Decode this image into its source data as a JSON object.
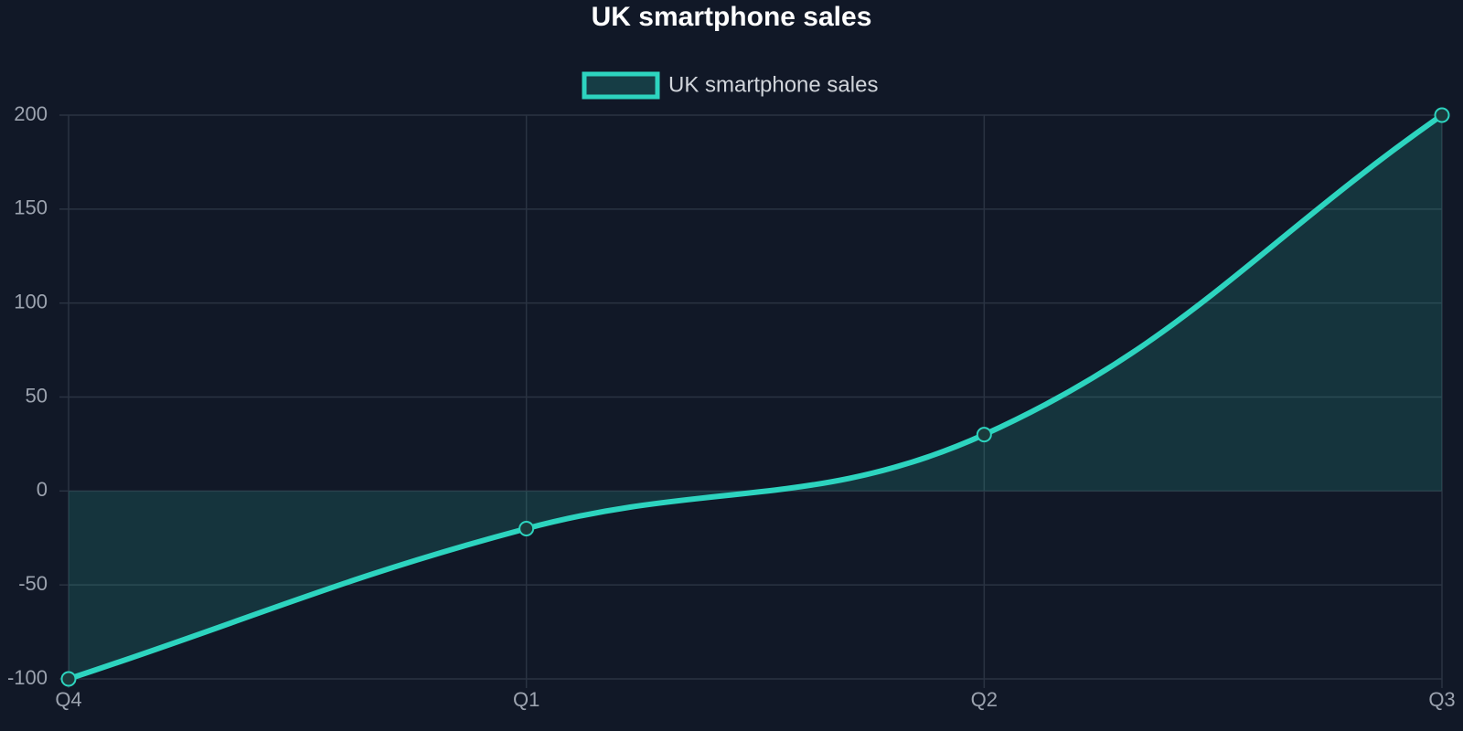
{
  "chart_data": {
    "type": "line",
    "title": "UK smartphone sales",
    "categories": [
      "Q4",
      "Q1",
      "Q2",
      "Q3"
    ],
    "series": [
      {
        "name": "UK smartphone sales",
        "color": "#2dd4bf",
        "values": [
          -100,
          -20,
          30,
          200
        ]
      }
    ],
    "ylim": [
      -100,
      200
    ],
    "yticks": [
      -100,
      -50,
      0,
      50,
      100,
      150,
      200
    ],
    "grid": true,
    "fill": "origin",
    "legend": "top"
  }
}
